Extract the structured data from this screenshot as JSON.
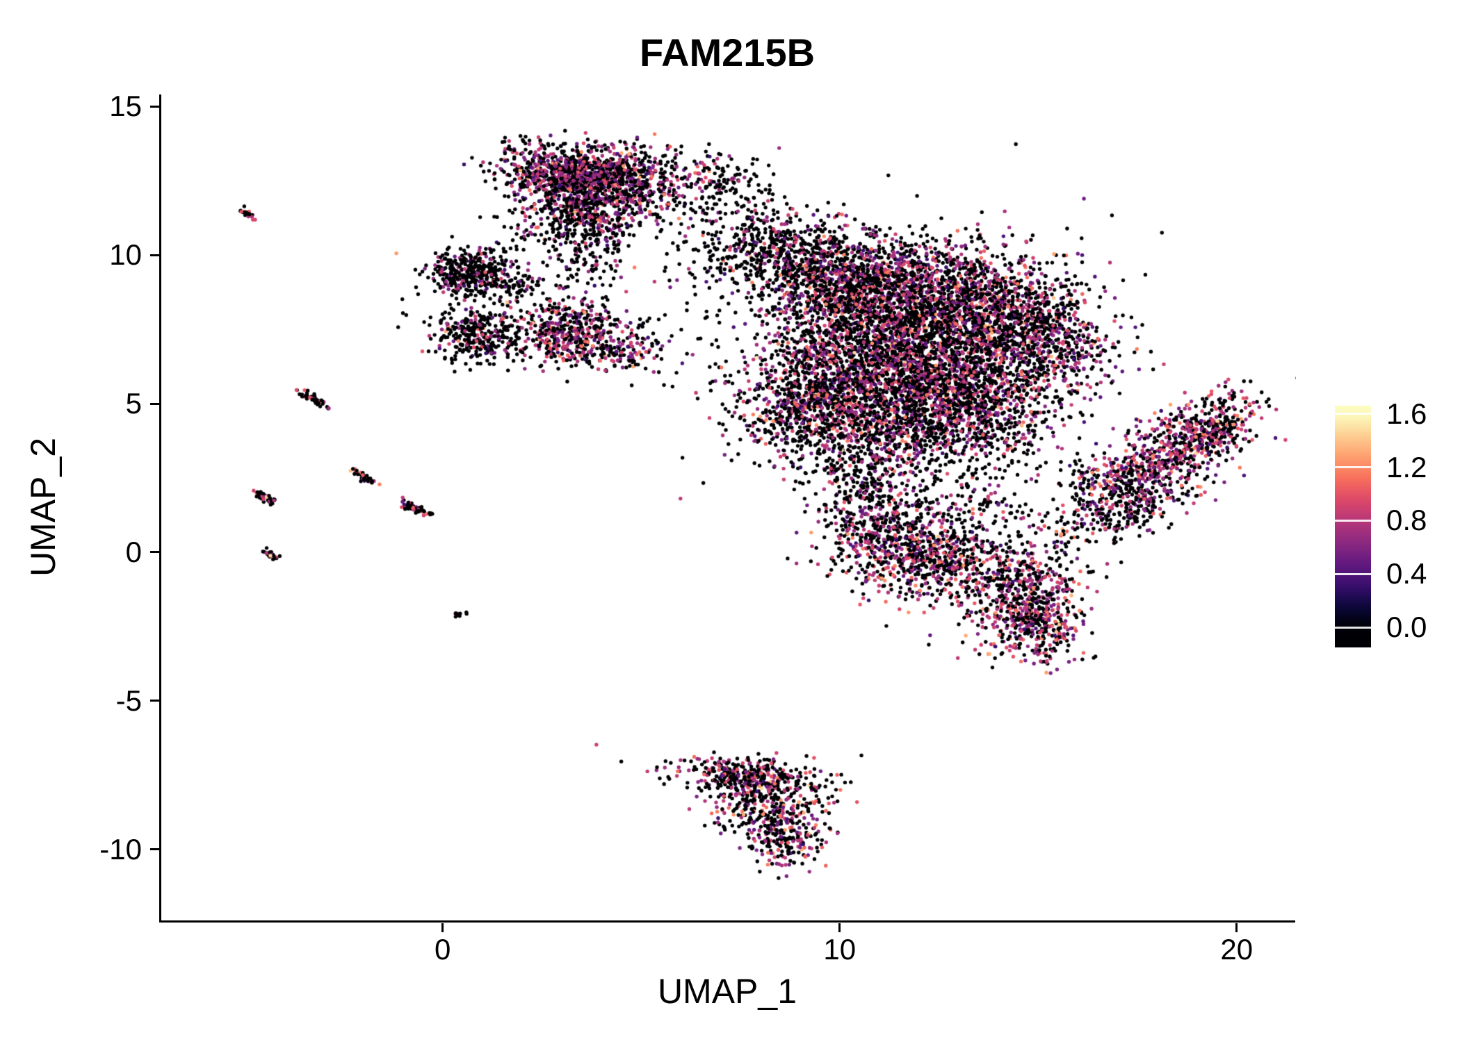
{
  "chart_data": {
    "type": "scatter",
    "title": "FAM215B",
    "xlabel": "UMAP_1",
    "ylabel": "UMAP_2",
    "xlim": [
      -7.14,
      21.44
    ],
    "ylim": [
      -12.41,
      15.4
    ],
    "grid": false,
    "background": "#ffffff",
    "x_ticks": [
      {
        "label": "0",
        "value": 0
      },
      {
        "label": "10",
        "value": 10
      },
      {
        "label": "20",
        "value": 20
      }
    ],
    "y_ticks": [
      {
        "label": "15",
        "value": 15
      },
      {
        "label": "10",
        "value": 10
      },
      {
        "label": "5",
        "value": 5
      },
      {
        "label": "0",
        "value": 0
      },
      {
        "label": "-5",
        "value": -5
      },
      {
        "label": "-10",
        "value": -10
      }
    ],
    "legend": {
      "position": "right",
      "kind": "colorbar",
      "vmin": 0.0,
      "vmax": 1.6,
      "ticks": [
        {
          "label": "1.6",
          "value": 1.6
        },
        {
          "label": "1.2",
          "value": 1.2
        },
        {
          "label": "0.8",
          "value": 0.8
        },
        {
          "label": "0.4",
          "value": 0.4
        },
        {
          "label": "0.0",
          "value": 0.0
        }
      ]
    },
    "colormap": {
      "name": "magma",
      "zero_color": "#000004",
      "stops": [
        "#000004",
        "#0b083c",
        "#3b0f70",
        "#641a80",
        "#8c2981",
        "#b73779",
        "#de4968",
        "#f7705c",
        "#fe9f6d",
        "#fecf92",
        "#fcfdbf"
      ]
    },
    "point_radius_px": 2.7,
    "seed": 42,
    "cluster_fields": [
      "n",
      "center_x",
      "center_y",
      "sd_x",
      "sd_y",
      "rotation_deg",
      "fraction_expressing",
      "expression_mean",
      "expression_sd"
    ],
    "clusters": [
      [
        700,
        3.1,
        12.8,
        0.9,
        0.45,
        -5,
        0.45,
        0.75,
        0.25
      ],
      [
        620,
        4.6,
        12.4,
        0.95,
        0.6,
        0,
        0.45,
        0.75,
        0.25
      ],
      [
        420,
        3.4,
        11.5,
        0.8,
        0.55,
        0,
        0.4,
        0.72,
        0.25
      ],
      [
        160,
        3.6,
        10.3,
        0.55,
        0.75,
        0,
        0.3,
        0.7,
        0.22
      ],
      [
        90,
        6.6,
        12.8,
        0.8,
        0.45,
        -15,
        0.25,
        0.7,
        0.22
      ],
      [
        120,
        7.3,
        11.2,
        0.7,
        0.9,
        0,
        0.15,
        0.65,
        0.2
      ],
      [
        360,
        0.6,
        9.4,
        0.55,
        0.42,
        0,
        0.22,
        0.7,
        0.22
      ],
      [
        60,
        1.7,
        9.0,
        0.45,
        0.3,
        -20,
        0.2,
        0.7,
        0.2
      ],
      [
        300,
        0.8,
        7.3,
        0.55,
        0.45,
        -20,
        0.25,
        0.7,
        0.22
      ],
      [
        470,
        3.2,
        7.4,
        0.75,
        0.55,
        0,
        0.5,
        0.78,
        0.25
      ],
      [
        90,
        4.4,
        6.8,
        0.5,
        0.35,
        -20,
        0.4,
        0.75,
        0.22
      ],
      [
        260,
        8.4,
        10.4,
        0.9,
        0.5,
        10,
        0.3,
        0.72,
        0.22
      ],
      [
        900,
        9.8,
        9.2,
        1.1,
        0.75,
        0,
        0.38,
        0.75,
        0.25
      ],
      [
        1300,
        11.9,
        8.5,
        1.4,
        0.95,
        0,
        0.42,
        0.78,
        0.25
      ],
      [
        800,
        14.0,
        7.9,
        1.1,
        0.95,
        0,
        0.42,
        0.78,
        0.25
      ],
      [
        450,
        15.4,
        6.8,
        0.8,
        1.0,
        0,
        0.4,
        0.75,
        0.25
      ],
      [
        1350,
        10.6,
        6.4,
        1.3,
        1.1,
        0,
        0.4,
        0.75,
        0.25
      ],
      [
        1100,
        12.6,
        5.7,
        1.2,
        1.0,
        0,
        0.42,
        0.78,
        0.25
      ],
      [
        600,
        9.2,
        4.9,
        0.85,
        0.85,
        0,
        0.38,
        0.75,
        0.25
      ],
      [
        420,
        11.3,
        4.1,
        1.0,
        0.65,
        0,
        0.38,
        0.75,
        0.22
      ],
      [
        300,
        13.6,
        4.3,
        0.9,
        0.8,
        0,
        0.35,
        0.75,
        0.22
      ],
      [
        500,
        11.7,
        6.8,
        2.6,
        2.2,
        0,
        0.3,
        0.72,
        0.22
      ],
      [
        520,
        11.3,
        0.3,
        0.85,
        0.85,
        0,
        0.45,
        0.78,
        0.25
      ],
      [
        300,
        12.4,
        -0.4,
        0.7,
        0.6,
        0,
        0.45,
        0.78,
        0.25
      ],
      [
        200,
        10.6,
        1.8,
        0.6,
        0.9,
        0,
        0.3,
        0.72,
        0.22
      ],
      [
        120,
        10.2,
        3.0,
        1.0,
        0.6,
        0,
        0.3,
        0.72,
        0.22
      ],
      [
        550,
        14.5,
        -1.3,
        0.85,
        0.8,
        0,
        0.55,
        0.8,
        0.25
      ],
      [
        260,
        14.9,
        -2.6,
        0.6,
        0.55,
        0,
        0.5,
        0.8,
        0.25
      ],
      [
        180,
        13.3,
        1.5,
        0.9,
        0.9,
        0,
        0.3,
        0.72,
        0.22
      ],
      [
        850,
        18.0,
        3.0,
        1.5,
        0.6,
        42,
        0.5,
        0.78,
        0.25
      ],
      [
        150,
        19.3,
        4.2,
        0.5,
        0.4,
        42,
        0.5,
        0.78,
        0.25
      ],
      [
        130,
        17.2,
        1.3,
        0.9,
        0.4,
        20,
        0.3,
        0.72,
        0.22
      ],
      [
        50,
        16.3,
        2.2,
        0.6,
        0.6,
        0,
        0.25,
        0.7,
        0.2
      ],
      [
        330,
        7.6,
        -7.5,
        0.95,
        0.3,
        -8,
        0.4,
        0.78,
        0.27
      ],
      [
        360,
        8.2,
        -8.6,
        0.75,
        0.65,
        0,
        0.45,
        0.8,
        0.27
      ],
      [
        160,
        8.6,
        -9.7,
        0.45,
        0.45,
        0,
        0.45,
        0.8,
        0.27
      ],
      [
        25,
        -5.0,
        11.4,
        0.16,
        0.05,
        -38,
        0.25,
        0.8,
        0.25
      ],
      [
        50,
        -3.3,
        5.15,
        0.22,
        0.06,
        -38,
        0.3,
        0.8,
        0.25
      ],
      [
        45,
        -2.05,
        2.55,
        0.18,
        0.06,
        -38,
        0.35,
        0.8,
        0.25
      ],
      [
        40,
        -4.55,
        1.85,
        0.2,
        0.06,
        -38,
        0.3,
        0.8,
        0.25
      ],
      [
        50,
        -0.75,
        1.5,
        0.22,
        0.07,
        -30,
        0.45,
        0.9,
        0.3
      ],
      [
        22,
        -4.35,
        -0.1,
        0.13,
        0.05,
        -38,
        0.25,
        0.8,
        0.25
      ],
      [
        12,
        0.35,
        -2.1,
        0.07,
        0.05,
        0,
        0.2,
        0.8,
        0.25
      ],
      [
        60,
        1.5,
        8.3,
        1.0,
        0.8,
        0,
        0.2,
        0.7,
        0.22
      ],
      [
        30,
        5.3,
        7.0,
        0.8,
        0.6,
        0,
        0.25,
        0.7,
        0.22
      ],
      [
        60,
        6.9,
        9.8,
        0.8,
        0.7,
        0,
        0.2,
        0.7,
        0.22
      ],
      [
        15,
        1.8,
        10.6,
        0.7,
        0.4,
        0,
        0.1,
        0.7,
        0.2
      ]
    ]
  }
}
